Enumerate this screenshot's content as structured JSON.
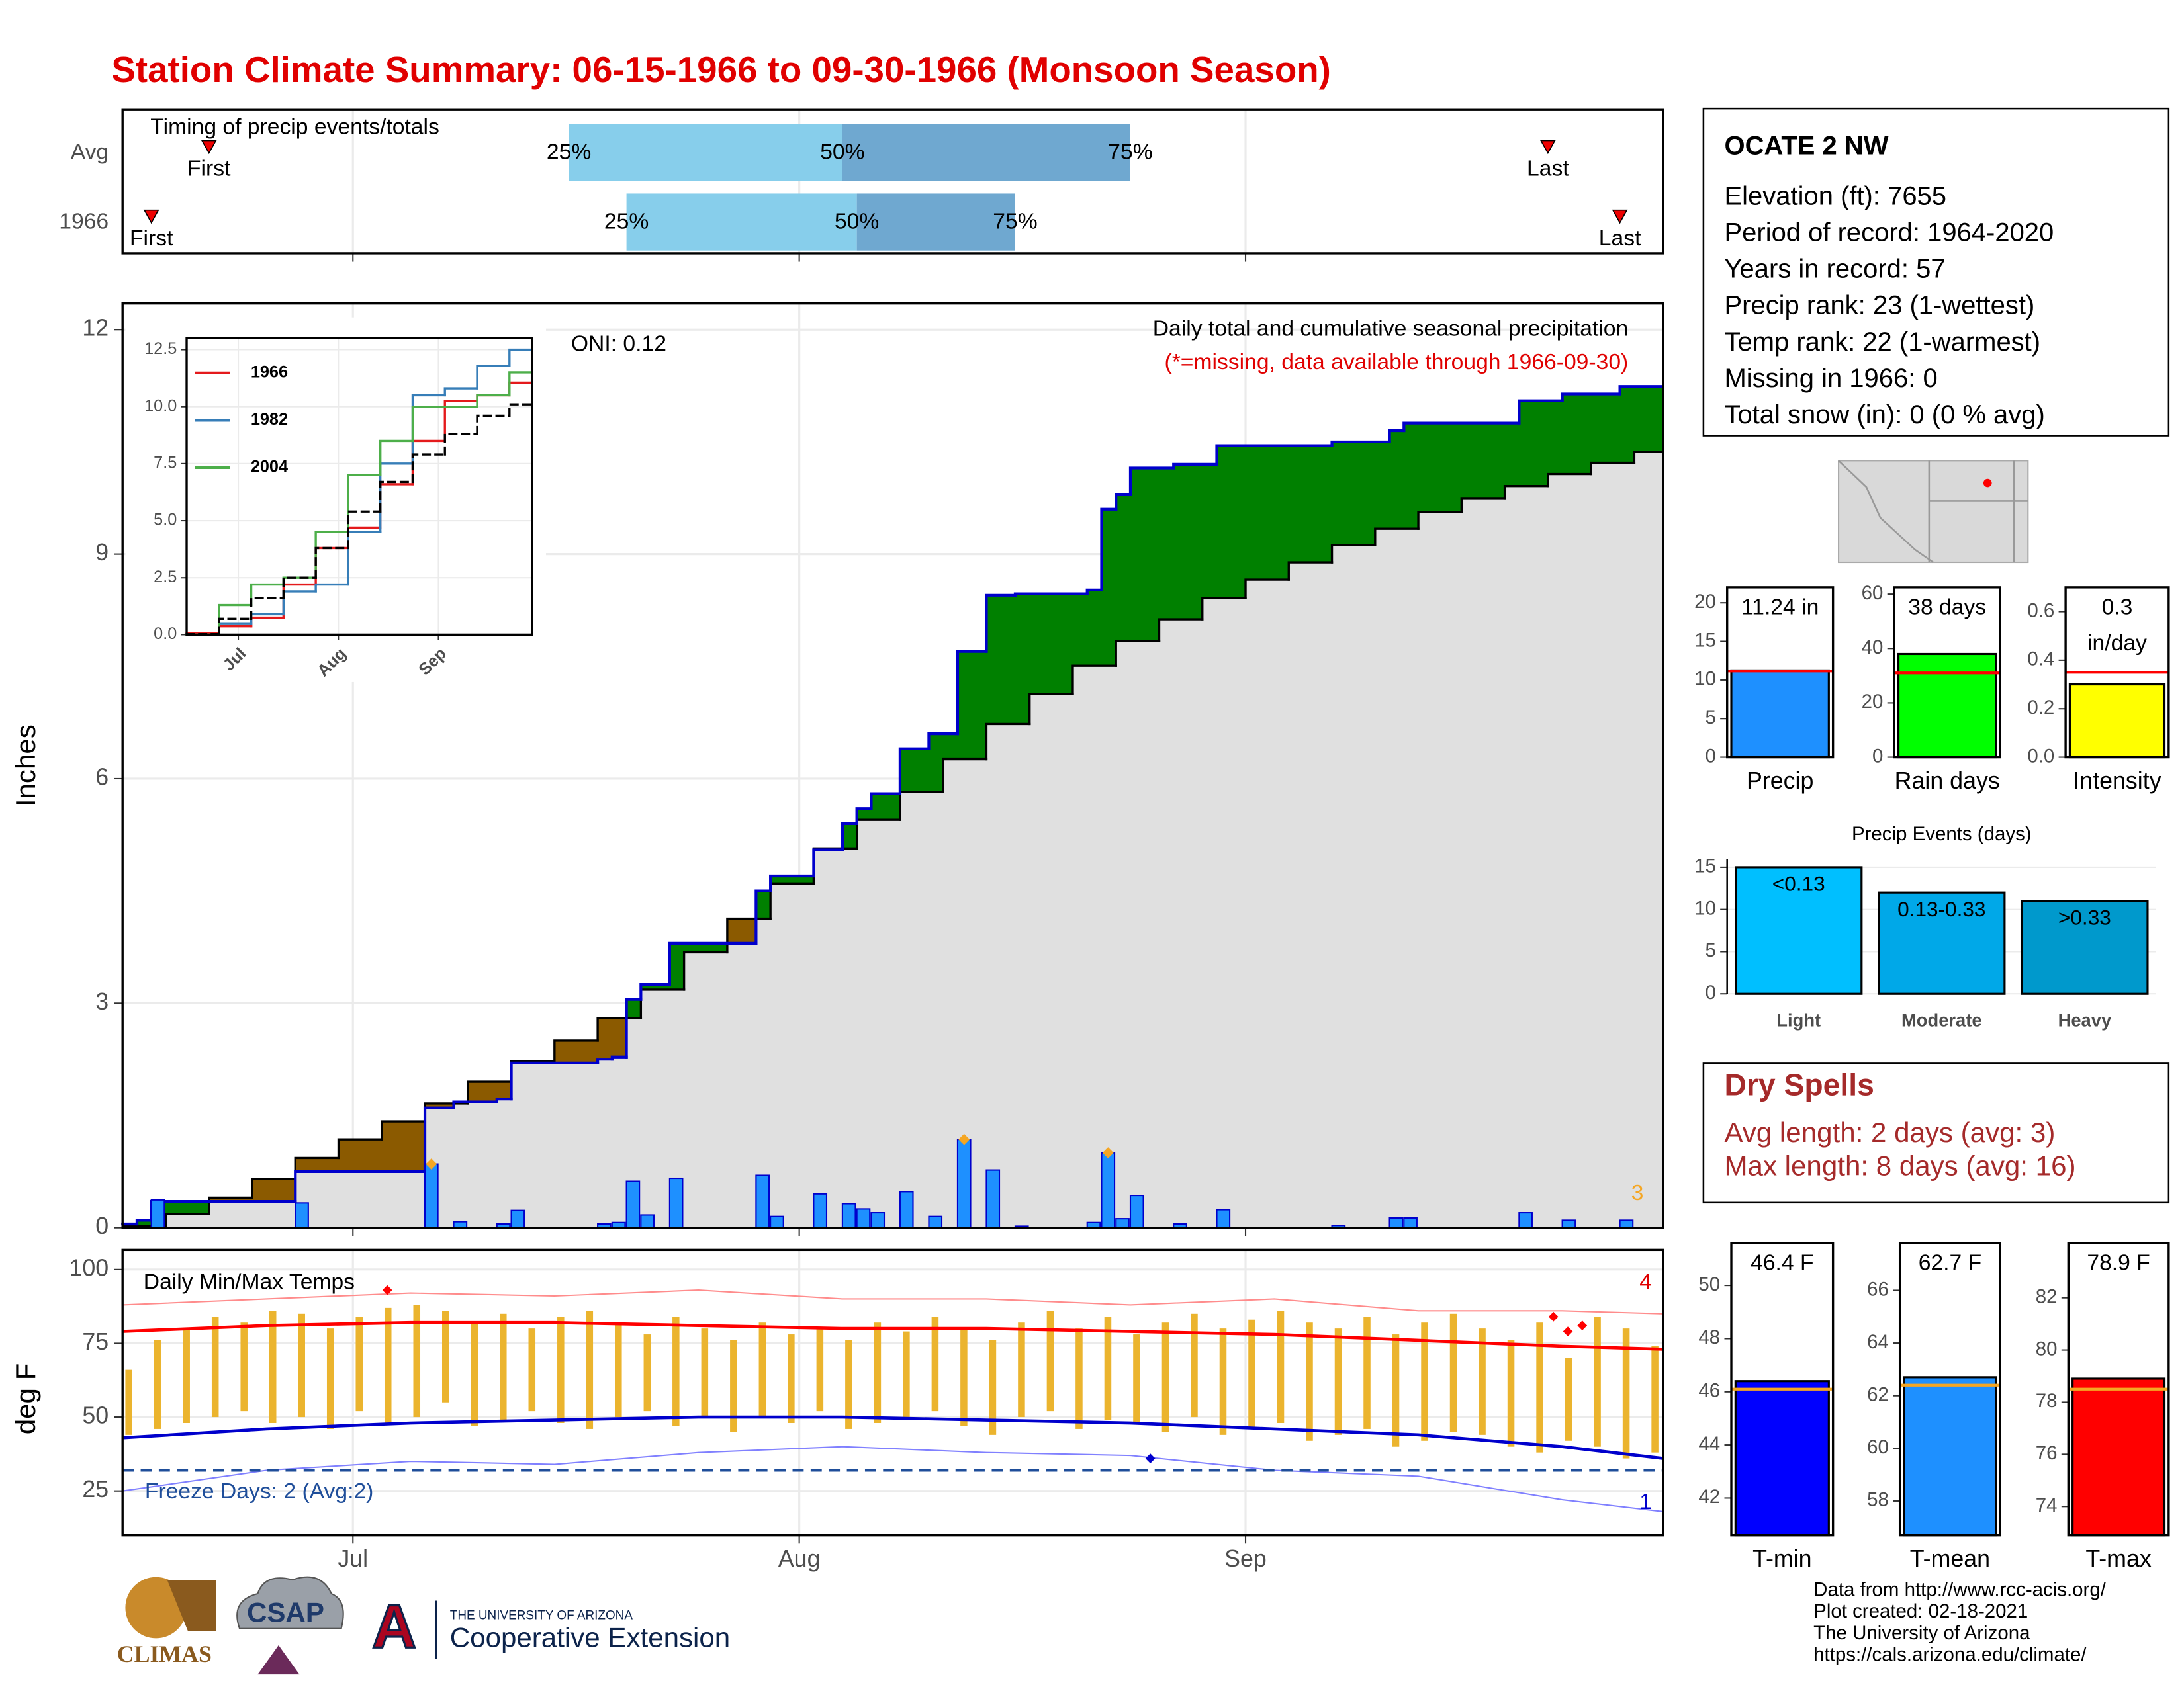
{
  "title": "Station Climate Summary: 06-15-1966 to 09-30-1966 (Monsoon Season)",
  "chart_data": [
    {
      "type": "timing",
      "title": "Timing of precip events/totals",
      "categories": [
        "Avg",
        "1966"
      ],
      "first": [
        6,
        2
      ],
      "q25": [
        31,
        35
      ],
      "q50": [
        50,
        51
      ],
      "q75": [
        70,
        62
      ],
      "last": [
        99,
        104
      ],
      "labels": {
        "first": "First",
        "last": "Last",
        "q25": "25%",
        "q50": "50%",
        "q75": "75%"
      },
      "colors": [
        "#87ceeb",
        "#6fa8d0"
      ],
      "xlim": [
        0,
        107
      ]
    },
    {
      "type": "step",
      "subtitle": "Daily total and cumulative seasonal precipitation",
      "note": "(*=missing, data available through 1966-09-30)",
      "oni": "ONI: 0.12",
      "ylabel": "Inches",
      "corner": 3,
      "xlim": [
        0,
        107
      ],
      "ylim": [
        0,
        12.35
      ],
      "yticks": [
        0,
        3,
        6,
        9,
        12
      ],
      "grid": true,
      "series": [
        {
          "color": "#0000cc",
          "x": [
            0,
            1,
            2,
            12,
            21,
            23,
            26,
            27,
            33,
            34,
            35,
            36,
            38,
            44,
            45,
            48,
            50,
            51,
            52,
            54,
            56,
            58,
            60,
            62,
            67,
            68,
            69,
            70,
            73,
            76,
            84,
            88,
            89,
            97,
            100,
            104
          ],
          "values": [
            0.05,
            0.1,
            0.35,
            0.75,
            1.6,
            1.68,
            1.72,
            2.2,
            2.25,
            2.28,
            3.05,
            3.25,
            3.8,
            4.5,
            4.7,
            5.05,
            5.4,
            5.6,
            5.8,
            6.4,
            6.6,
            7.7,
            8.45,
            8.47,
            8.52,
            9.6,
            9.8,
            10.15,
            10.2,
            10.45,
            10.5,
            10.65,
            10.75,
            11.05,
            11.14,
            11.24
          ]
        },
        {
          "color": "#000000",
          "x": [
            0,
            3,
            6,
            9,
            12,
            15,
            18,
            21,
            24,
            27,
            30,
            33,
            36,
            39,
            42,
            45,
            48,
            51,
            54,
            57,
            60,
            63,
            66,
            69,
            72,
            75,
            78,
            81,
            84,
            87,
            90,
            93,
            96,
            99,
            102,
            105
          ],
          "values": [
            0.02,
            0.18,
            0.4,
            0.65,
            0.93,
            1.18,
            1.42,
            1.66,
            1.95,
            2.22,
            2.5,
            2.8,
            3.18,
            3.68,
            4.13,
            4.6,
            5.06,
            5.45,
            5.82,
            6.26,
            6.73,
            7.13,
            7.51,
            7.84,
            8.13,
            8.41,
            8.66,
            8.89,
            9.12,
            9.34,
            9.56,
            9.74,
            9.91,
            10.07,
            10.22,
            10.37
          ]
        }
      ],
      "fills": {
        "above": "#008000",
        "below": "#8b5a00",
        "base": "#e0e0e0"
      },
      "bars": {
        "color": "#1e90ff",
        "stroke": "#0000cc",
        "x": [
          2,
          12,
          21,
          23,
          26,
          27,
          33,
          34,
          35,
          36,
          38,
          44,
          45,
          48,
          50,
          51,
          52,
          54,
          56,
          58,
          60,
          62,
          67,
          68,
          69,
          70,
          73,
          76,
          84,
          88,
          89,
          97,
          100,
          104
        ],
        "values": [
          0.37,
          0.33,
          0.85,
          0.08,
          0.05,
          0.23,
          0.05,
          0.07,
          0.62,
          0.17,
          0.66,
          0.7,
          0.15,
          0.45,
          0.32,
          0.25,
          0.2,
          0.48,
          0.15,
          1.18,
          0.77,
          0.02,
          0.07,
          1.0,
          0.12,
          0.43,
          0.05,
          0.24,
          0.03,
          0.13,
          0.13,
          0.2,
          0.1,
          0.1
        ]
      },
      "markers": {
        "color": "#f5a623",
        "x": [
          21,
          58,
          68
        ],
        "values": [
          0.85,
          1.18,
          1.0
        ]
      }
    },
    {
      "type": "step",
      "xlim": [
        0,
        107
      ],
      "ylim": [
        0,
        13
      ],
      "yticks": [
        {
          "value": 0,
          "label": "0.0"
        },
        {
          "value": 2.5,
          "label": "2.5"
        },
        {
          "value": 5,
          "label": "5.0"
        },
        7.5,
        {
          "value": 10,
          "label": "10.0"
        },
        12.5
      ],
      "xticks": [
        {
          "value": 16,
          "label": "Jul"
        },
        {
          "value": 47,
          "label": "Aug"
        },
        {
          "value": 78,
          "label": "Sep"
        }
      ],
      "series": [
        {
          "name": "1966",
          "color": "#e41a1c",
          "x": [
            0,
            10,
            20,
            30,
            40,
            50,
            60,
            70,
            80,
            90,
            100,
            107
          ],
          "values": [
            0.05,
            0.37,
            0.75,
            2.2,
            3.8,
            4.7,
            6.6,
            8.5,
            10.25,
            10.5,
            11.05,
            11.24
          ]
        },
        {
          "name": "1982",
          "color": "#377eb8",
          "x": [
            0,
            10,
            20,
            30,
            40,
            50,
            60,
            70,
            80,
            90,
            100,
            107
          ],
          "values": [
            0,
            0.5,
            0.9,
            1.9,
            2.2,
            4.5,
            7.5,
            10.5,
            10.8,
            11.8,
            12.5,
            12.5
          ]
        },
        {
          "name": "2004",
          "color": "#4daf4a",
          "x": [
            0,
            10,
            20,
            30,
            40,
            50,
            60,
            70,
            80,
            90,
            100,
            107
          ],
          "values": [
            0,
            1.3,
            2.2,
            2.5,
            4.5,
            7.0,
            8.5,
            10.0,
            10.0,
            10.5,
            11.5,
            11.5
          ]
        },
        {
          "color": "#000000",
          "dash": true,
          "x": [
            0,
            10,
            20,
            30,
            40,
            50,
            60,
            70,
            80,
            90,
            100,
            107
          ],
          "values": [
            0.02,
            0.7,
            1.6,
            2.5,
            3.8,
            5.4,
            6.7,
            7.9,
            8.8,
            9.6,
            10.1,
            10.5
          ]
        }
      ]
    },
    {
      "type": "minmax",
      "title": "Daily Min/Max Temps",
      "ylabel": "deg F",
      "xlim": [
        0,
        107
      ],
      "ylim": [
        10,
        106.6
      ],
      "yticks": [
        25,
        50,
        75,
        100
      ],
      "xticks": [
        {
          "value": 16,
          "label": "Jul"
        },
        {
          "value": 47,
          "label": "Aug"
        },
        {
          "value": 78,
          "label": "Sep"
        }
      ],
      "bars": {
        "color": "#ebb42e",
        "x": [
          0,
          2,
          4,
          6,
          8,
          10,
          12,
          14,
          16,
          18,
          20,
          22,
          24,
          26,
          28,
          30,
          32,
          34,
          36,
          38,
          40,
          42,
          44,
          46,
          48,
          50,
          52,
          54,
          56,
          58,
          60,
          62,
          64,
          66,
          68,
          70,
          72,
          74,
          76,
          78,
          80,
          82,
          84,
          86,
          88,
          90,
          92,
          94,
          96,
          98,
          100,
          102,
          104,
          106
        ],
        "high": [
          66,
          76,
          80,
          84,
          82,
          86,
          85,
          80,
          84,
          87,
          88,
          86,
          82,
          85,
          80,
          84,
          86,
          82,
          78,
          84,
          80,
          76,
          82,
          78,
          80,
          76,
          82,
          79,
          84,
          80,
          76,
          82,
          86,
          80,
          84,
          78,
          82,
          85,
          80,
          83,
          86,
          82,
          80,
          84,
          78,
          82,
          85,
          80,
          76,
          82,
          70,
          84,
          80,
          74
        ],
        "low": [
          44,
          46,
          48,
          50,
          52,
          48,
          50,
          46,
          52,
          48,
          50,
          55,
          47,
          49,
          52,
          48,
          46,
          50,
          52,
          47,
          50,
          45,
          50,
          48,
          52,
          46,
          48,
          50,
          52,
          47,
          44,
          50,
          52,
          46,
          49,
          48,
          45,
          50,
          44,
          46,
          48,
          42,
          44,
          46,
          40,
          42,
          45,
          44,
          40,
          38,
          42,
          40,
          36,
          38
        ]
      },
      "series": [
        {
          "color": "#ff0000",
          "width": 2.2,
          "x": [
            0,
            10,
            20,
            30,
            40,
            50,
            60,
            70,
            80,
            90,
            100,
            107
          ],
          "values": [
            79,
            81,
            82,
            82,
            81,
            80,
            80,
            79,
            78,
            76,
            74,
            73
          ]
        },
        {
          "color": "#0000cc",
          "width": 2.2,
          "x": [
            0,
            10,
            20,
            30,
            40,
            50,
            60,
            70,
            80,
            90,
            100,
            107
          ],
          "values": [
            43,
            46,
            48,
            49,
            50,
            50,
            49,
            48,
            46,
            44,
            40,
            36
          ]
        },
        {
          "color": "#ff8c8c",
          "width": 1,
          "x": [
            0,
            10,
            20,
            30,
            40,
            50,
            60,
            70,
            80,
            90,
            100,
            107
          ],
          "values": [
            88,
            90,
            92,
            91,
            93,
            90,
            90,
            88,
            90,
            86,
            86,
            85
          ]
        },
        {
          "color": "#8080ff",
          "width": 1,
          "x": [
            0,
            10,
            20,
            30,
            40,
            50,
            60,
            70,
            80,
            90,
            100,
            107
          ],
          "values": [
            25,
            32,
            35,
            34,
            38,
            40,
            38,
            37,
            32,
            30,
            22,
            18
          ]
        }
      ],
      "freeze": 32,
      "freeze_color": "#1f4e9a",
      "freeze_label": "Freeze Days: 2 (Avg:2)",
      "corner_high": 4,
      "corner_low": 1,
      "markers": [
        {
          "color": "#ff0000",
          "x": [
            18,
            99,
            100,
            101
          ],
          "values": [
            93,
            84,
            79,
            81
          ]
        },
        {
          "color": "#0000cc",
          "x": [
            71
          ],
          "values": [
            36
          ]
        }
      ]
    },
    {
      "type": "bar",
      "categories": [
        "Precip"
      ],
      "values": [
        11.24
      ],
      "value_labels": [
        "11.24 in"
      ],
      "color": "#1e90ff",
      "avg": 11.17,
      "avg_color": "#ff0000",
      "ylim": [
        0,
        22
      ],
      "yticks": [
        0,
        5,
        10,
        15,
        20
      ]
    },
    {
      "type": "bar",
      "categories": [
        "Rain days"
      ],
      "values": [
        38
      ],
      "value_labels": [
        "38 days"
      ],
      "color": "#00ff00",
      "avg": 31,
      "avg_color": "#ff0000",
      "ylim": [
        0,
        62.5
      ],
      "yticks": [
        0,
        20,
        40,
        60
      ]
    },
    {
      "type": "bar",
      "categories": [
        "Intensity"
      ],
      "values": [
        0.3
      ],
      "value_labels": [
        "0.3"
      ],
      "unit": "in/day",
      "color": "#ffff00",
      "avg": 0.35,
      "avg_color": "#ff0000",
      "ylim": [
        0,
        0.7
      ],
      "yticks": [
        {
          "value": 0,
          "label": "0.0"
        },
        0.2,
        0.4,
        0.6
      ]
    },
    {
      "type": "events",
      "title": "Precip Events (days)",
      "categories": [
        "Light",
        "Moderate",
        "Heavy"
      ],
      "values": [
        15,
        12,
        11
      ],
      "bar_labels": [
        "<0.13",
        "0.13-0.33",
        ">0.33"
      ],
      "colors": [
        "#00bfff",
        "#00a8e8",
        "#0099cc"
      ],
      "ylim": [
        0,
        16
      ],
      "yticks": [
        0,
        5,
        10,
        15
      ]
    },
    {
      "type": "bar",
      "categories": [
        "T-min"
      ],
      "values": [
        46.4
      ],
      "value_labels": [
        "46.4 F"
      ],
      "color": "#0000ff",
      "avg": 46.1,
      "avg_color": "#f5a623",
      "ylim": [
        40.6,
        51.6
      ],
      "yticks": [
        42,
        44,
        46,
        48,
        50
      ]
    },
    {
      "type": "bar",
      "categories": [
        "T-mean"
      ],
      "values": [
        62.7
      ],
      "value_labels": [
        "62.7 F"
      ],
      "color": "#1e90ff",
      "avg": 62.4,
      "avg_color": "#f5a623",
      "ylim": [
        56.7,
        67.8
      ],
      "yticks": [
        58,
        60,
        62,
        64,
        66
      ]
    },
    {
      "type": "bar",
      "categories": [
        "T-max"
      ],
      "values": [
        78.9
      ],
      "value_labels": [
        "78.9 F"
      ],
      "color": "#ff0000",
      "avg": 78.5,
      "avg_color": "#f5a623",
      "ylim": [
        72.9,
        84.1
      ],
      "yticks": [
        74,
        76,
        78,
        80,
        82
      ]
    }
  ],
  "station": {
    "name": "OCATE 2 NW",
    "lines": [
      "Elevation (ft): 7655",
      "Period of record: 1964-2020",
      "Years in record: 57",
      "Precip rank: 23 (1-wettest)",
      "Temp rank: 22 (1-warmest)",
      "Missing in 1966: 0",
      "Total snow (in): 0 (0 % avg)"
    ]
  },
  "dry_spells": {
    "title": "Dry Spells",
    "lines": [
      "Avg length: 2 days (avg: 3)",
      "Max length: 8 days (avg: 16)"
    ]
  },
  "footer": {
    "logos": [
      "CLIMAS",
      "CSAP",
      "A",
      "THE UNIVERSITY OF ARIZONA",
      "Cooperative Extension"
    ],
    "credits": [
      "Data from http://www.rcc-acis.org/",
      "Plot created: 02-18-2021",
      "The University of Arizona",
      "https://cals.arizona.edu/climate/"
    ]
  }
}
